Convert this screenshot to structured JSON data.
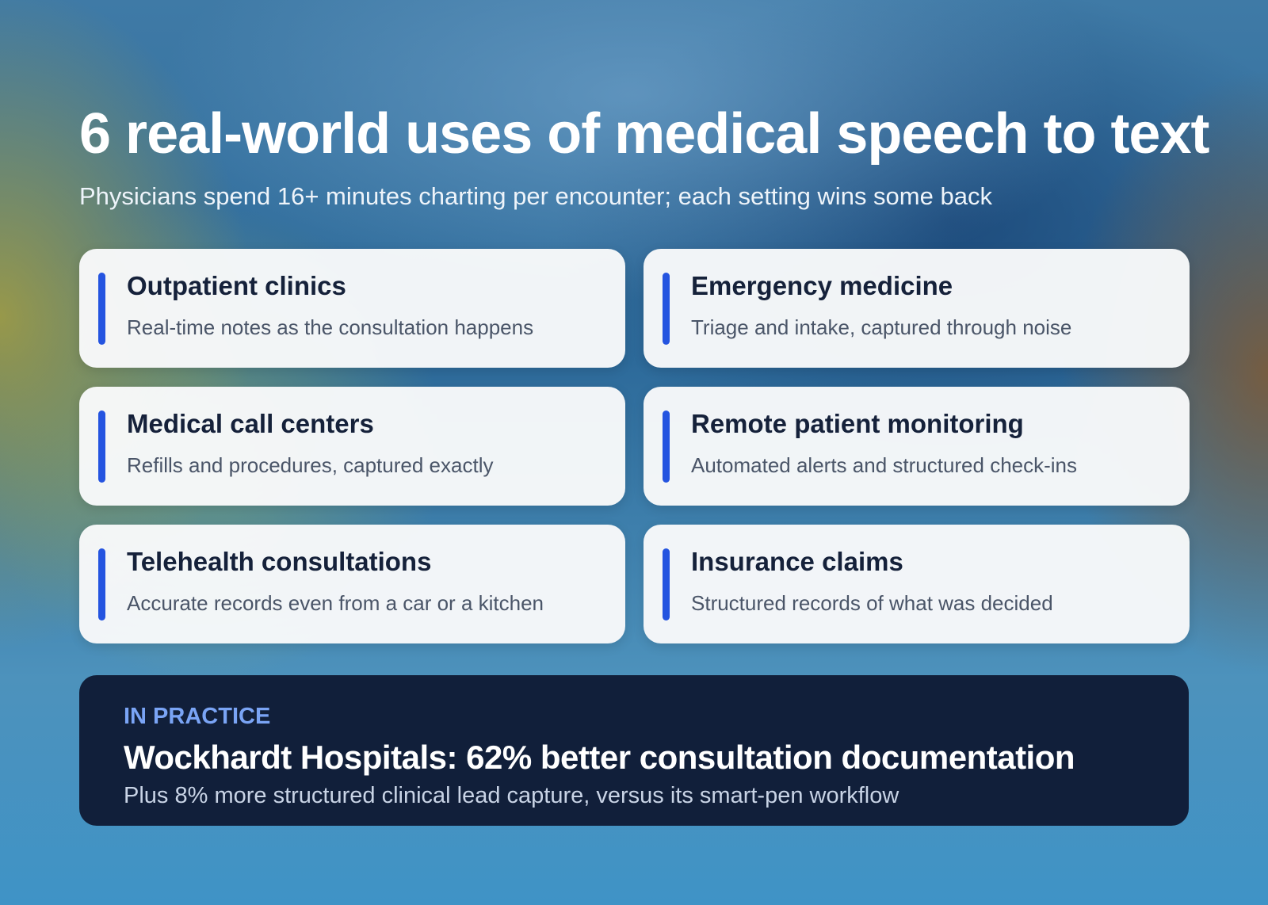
{
  "header": {
    "title": "6 real-world uses of medical speech to text",
    "subtitle": "Physicians spend 16+ minutes charting per encounter; each setting wins some back"
  },
  "cards": [
    {
      "title": "Outpatient clinics",
      "description": "Real-time notes as the consultation happens"
    },
    {
      "title": "Emergency medicine",
      "description": "Triage and intake, captured through noise"
    },
    {
      "title": "Medical call centers",
      "description": "Refills and procedures, captured exactly"
    },
    {
      "title": "Remote patient monitoring",
      "description": "Automated alerts and structured check-ins"
    },
    {
      "title": "Telehealth consultations",
      "description": "Accurate records even from a car or a kitchen"
    },
    {
      "title": "Insurance claims",
      "description": "Structured records of what was decided"
    }
  ],
  "callout": {
    "label": "IN PRACTICE",
    "title": "Wockhardt Hospitals: 62% better consultation documentation",
    "text": "Plus 8% more structured clinical lead capture, versus its smart-pen workflow"
  }
}
